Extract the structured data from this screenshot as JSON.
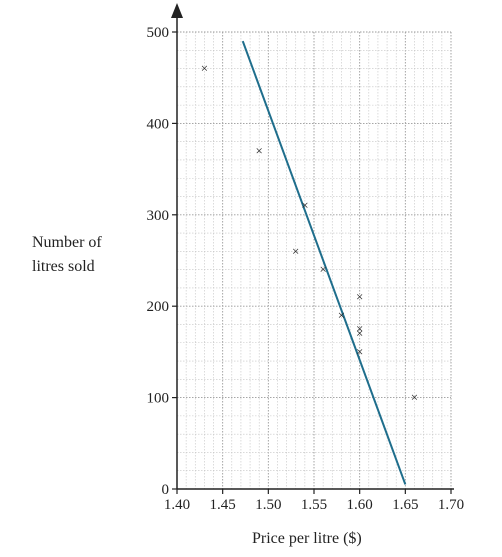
{
  "chart_data": {
    "type": "scatter",
    "xlabel": "Price per litre ($)",
    "ylabel_lines": [
      "Number of",
      "litres sold"
    ],
    "xlim": [
      1.4,
      1.7
    ],
    "ylim": [
      0,
      500
    ],
    "x_ticks": [
      "1.40",
      "1.45",
      "1.50",
      "1.55",
      "1.60",
      "1.65",
      "1.70"
    ],
    "y_ticks": [
      "0",
      "100",
      "200",
      "300",
      "400",
      "500"
    ],
    "grid": true,
    "point_marker": "×",
    "points": [
      {
        "x": 1.43,
        "y": 460
      },
      {
        "x": 1.49,
        "y": 370
      },
      {
        "x": 1.53,
        "y": 260
      },
      {
        "x": 1.54,
        "y": 310
      },
      {
        "x": 1.56,
        "y": 240
      },
      {
        "x": 1.58,
        "y": 190
      },
      {
        "x": 1.6,
        "y": 210
      },
      {
        "x": 1.6,
        "y": 175
      },
      {
        "x": 1.6,
        "y": 170
      },
      {
        "x": 1.6,
        "y": 150
      },
      {
        "x": 1.66,
        "y": 100
      }
    ],
    "trend_line": {
      "x": [
        1.472,
        1.65
      ],
      "y": [
        490,
        5
      ],
      "color": "#1f6e8c"
    },
    "colors": {
      "axis": "#222222",
      "grid_major": "#9a9a9a",
      "grid_minor": "#c4c4c4",
      "marker": "#222222"
    }
  }
}
